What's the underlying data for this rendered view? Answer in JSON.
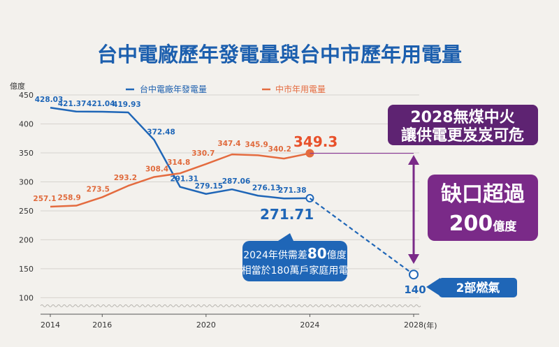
{
  "chart_data": {
    "type": "line",
    "title": "台中電廠歷年發電量與台中市歷年用電量",
    "ylabel": "億度",
    "xlabel": "(年)",
    "ylim": [
      80,
      450
    ],
    "yticks": [
      100,
      150,
      200,
      250,
      300,
      350,
      400,
      450
    ],
    "xticks": [
      2014,
      2016,
      2020,
      2024,
      2028
    ],
    "xlim": [
      2014,
      2028
    ],
    "grid": true,
    "legend": "top",
    "series": [
      {
        "name": "台中電廠年發電量",
        "color": "#1f66b7",
        "x": [
          2014,
          2015,
          2016,
          2017,
          2018,
          2019,
          2020,
          2021,
          2022,
          2023,
          2024
        ],
        "values": [
          428.03,
          421.37,
          421.04,
          419.93,
          372.48,
          291.31,
          279.15,
          287.06,
          276.13,
          271.38,
          271.71
        ],
        "labels": [
          "428.03",
          "421.37",
          "421.04",
          "419.93",
          "372.48",
          "291.31",
          "279.15",
          "287.06",
          "276.13",
          "271.38",
          ""
        ]
      },
      {
        "name": "中市年用電量",
        "color": "#e46b3f",
        "x": [
          2014,
          2015,
          2016,
          2017,
          2018,
          2019,
          2020,
          2021,
          2022,
          2023,
          2024
        ],
        "values": [
          257.1,
          258.9,
          273.5,
          293.2,
          308.4,
          314.8,
          330.7,
          347.4,
          345.9,
          340.2,
          349.3
        ],
        "labels": [
          "257.1",
          "258.9",
          "273.5",
          "293.2",
          "308.4",
          "314.8",
          "330.7",
          "347.4",
          "345.9",
          "340.2",
          ""
        ]
      }
    ],
    "projection": {
      "from_x": 2024,
      "from_y": 271.71,
      "to_x": 2028,
      "to_y": 140
    },
    "annotations": {
      "highlight_orange": "349.3",
      "highlight_blue": "271.71",
      "box_line1_a": "2024年供需差",
      "box_line1_b": "80",
      "box_line1_c": "億度",
      "box_line2": "相當於180萬戶家庭用電",
      "callout_line1": "2028無煤中火",
      "callout_line2": "讓供電更岌岌可危",
      "gap_line1": "缺口超過",
      "gap_line2_a": "200",
      "gap_line2_b": "億度",
      "target_value": "140",
      "gas_label": "2部燃氣"
    },
    "colors": {
      "blue": "#1f66b7",
      "orange": "#e46b3f",
      "purple": "#7a2a88",
      "callout": "#5e2372"
    }
  }
}
